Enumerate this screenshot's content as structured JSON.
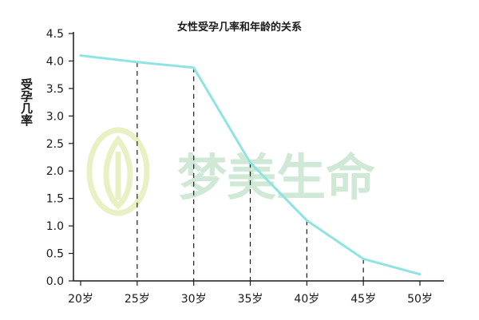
{
  "chart_data": {
    "type": "line",
    "title": "女性受孕几率和年龄的关系",
    "xlabel": "",
    "ylabel": "受孕几率",
    "x": [
      20,
      25,
      30,
      35,
      40,
      45,
      50
    ],
    "xticklabels": [
      "20岁",
      "25岁",
      "30岁",
      "35岁",
      "40岁",
      "45岁",
      "50岁"
    ],
    "yticks": [
      "0.0",
      "0.5",
      "1.0",
      "1.5",
      "2.0",
      "2.5",
      "3.0",
      "3.5",
      "4.0",
      "4.5"
    ],
    "xlim": [
      20,
      50
    ],
    "ylim": [
      0,
      4.5
    ],
    "series": [
      {
        "values": [
          4.1,
          3.98,
          3.88,
          2.15,
          1.1,
          0.4,
          0.12
        ]
      }
    ],
    "dropline_x": [
      25,
      30,
      35,
      40,
      45
    ],
    "grid": false,
    "line_color": "#8ee3e3",
    "axis_color": "#1a1a1a"
  },
  "watermark": {
    "text": "梦美生命",
    "color": "#cfe9d6"
  }
}
